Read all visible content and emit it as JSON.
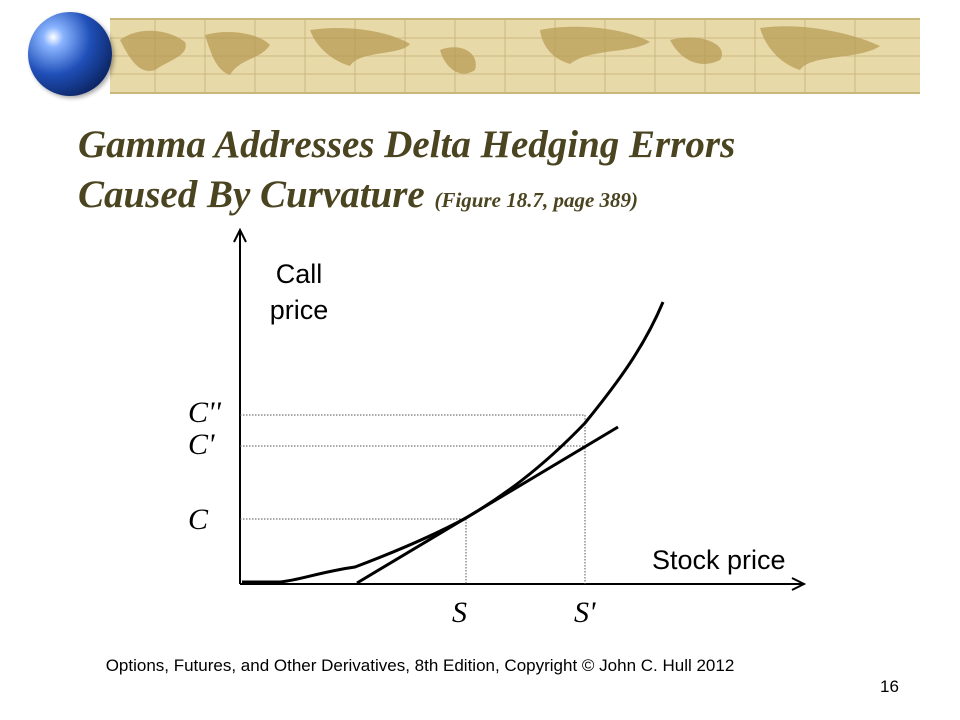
{
  "slide": {
    "title_line1": "Gamma Addresses Delta Hedging Errors",
    "title_line2": "Caused By Curvature",
    "title_ref": "(Figure 18.7, page 389)",
    "footer": "Options, Futures, and Other Derivatives, 8th Edition, Copyright © John  C. Hull 2012",
    "page_number": "16"
  },
  "diagram": {
    "y_axis_label_line1": "Call",
    "y_axis_label_line2": "price",
    "x_axis_label": "Stock price",
    "y_marker_c2": "C''",
    "y_marker_c1": "C'",
    "y_marker_c": "C",
    "x_marker_s": "S",
    "x_marker_s1": "S'"
  }
}
